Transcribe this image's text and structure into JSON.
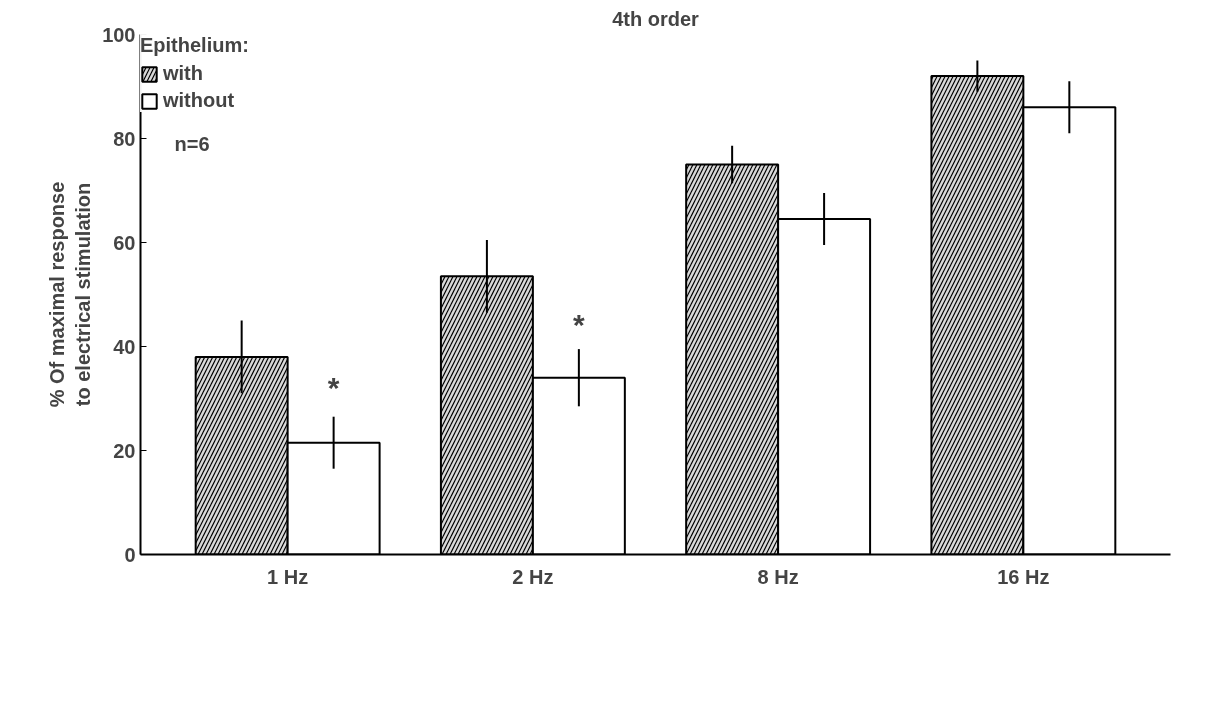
{
  "chart_data": {
    "type": "bar",
    "title": "4th order",
    "ylabel": "% Of maximal response\nto electrical stimulation",
    "legend_title": "Epithelium:",
    "categories": [
      "1 Hz",
      "2 Hz",
      "8 Hz",
      "16 Hz"
    ],
    "series": [
      {
        "name": "with",
        "color": "#d9d9d9",
        "values": [
          38,
          53.5,
          75,
          92
        ],
        "errors": [
          7,
          7,
          3.6,
          3
        ]
      },
      {
        "name": "without",
        "color": "#ffffff",
        "values": [
          21.5,
          34,
          64.5,
          86
        ],
        "errors": [
          5,
          5.5,
          5,
          5
        ]
      }
    ],
    "ylim": [
      0,
      100
    ],
    "yticks": [
      0,
      20,
      40,
      60,
      80,
      100
    ],
    "grid": false,
    "legend": "top left",
    "annotations": [
      "n=6",
      {
        "text": "*",
        "x": "1 Hz",
        "y": 29
      },
      {
        "text": "*",
        "x": "2 Hz",
        "y": 41
      }
    ]
  }
}
